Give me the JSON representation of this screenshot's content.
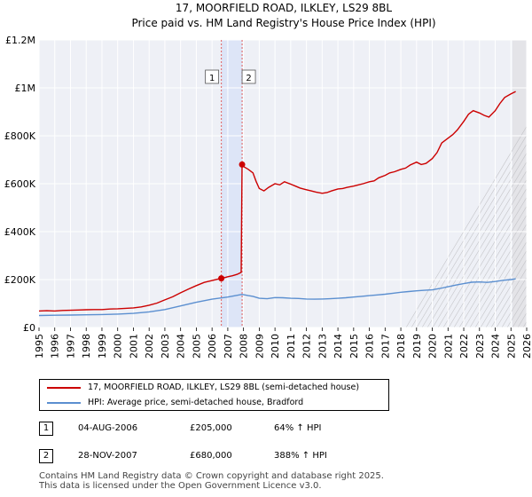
{
  "chart_data": {
    "type": "line",
    "title": "17, MOORFIELD ROAD, ILKLEY, LS29 8BL",
    "subtitle": "Price paid vs. HM Land Registry's House Price Index (HPI)",
    "ylim": [
      0,
      1200000
    ],
    "xlim": [
      1995,
      2026
    ],
    "y_ticks": [
      {
        "value": 0,
        "label": "£0"
      },
      {
        "value": 200000,
        "label": "£200K"
      },
      {
        "value": 400000,
        "label": "£400K"
      },
      {
        "value": 600000,
        "label": "£600K"
      },
      {
        "value": 800000,
        "label": "£800K"
      },
      {
        "value": 1000000,
        "label": "£1M"
      },
      {
        "value": 1200000,
        "label": "£1.2M"
      }
    ],
    "x_ticks": [
      1995,
      1996,
      1997,
      1998,
      1999,
      2000,
      2001,
      2002,
      2003,
      2004,
      2005,
      2006,
      2007,
      2008,
      2009,
      2010,
      2011,
      2012,
      2013,
      2014,
      2015,
      2016,
      2017,
      2018,
      2019,
      2020,
      2021,
      2022,
      2023,
      2024,
      2025,
      2026
    ],
    "grid": true,
    "shaded_band": {
      "from": 2006.59,
      "to": 2007.91
    },
    "sales": [
      {
        "id": "1",
        "x": 2006.59,
        "y": 205000
      },
      {
        "id": "2",
        "x": 2007.91,
        "y": 680000
      }
    ],
    "future_from": 2025.1,
    "series": [
      {
        "name": "17, MOORFIELD ROAD, ILKLEY, LS29 8BL (semi-detached house)",
        "color": "#cc0000",
        "points": [
          [
            1995.0,
            69000
          ],
          [
            1995.5,
            70000
          ],
          [
            1996.0,
            69000
          ],
          [
            1996.5,
            71000
          ],
          [
            1997.0,
            72000
          ],
          [
            1997.5,
            73000
          ],
          [
            1998.0,
            74000
          ],
          [
            1998.5,
            75000
          ],
          [
            1999.0,
            75000
          ],
          [
            1999.5,
            77000
          ],
          [
            2000.0,
            78000
          ],
          [
            2000.5,
            80000
          ],
          [
            2001.0,
            82000
          ],
          [
            2001.5,
            86000
          ],
          [
            2002.0,
            93000
          ],
          [
            2002.5,
            102000
          ],
          [
            2003.0,
            115000
          ],
          [
            2003.5,
            128000
          ],
          [
            2004.0,
            145000
          ],
          [
            2004.5,
            160000
          ],
          [
            2005.0,
            175000
          ],
          [
            2005.5,
            188000
          ],
          [
            2006.0,
            196000
          ],
          [
            2006.59,
            205000
          ],
          [
            2006.8,
            208000
          ],
          [
            2007.0,
            212000
          ],
          [
            2007.3,
            216000
          ],
          [
            2007.6,
            222000
          ],
          [
            2007.85,
            230000
          ],
          [
            2007.91,
            680000
          ],
          [
            2008.0,
            672000
          ],
          [
            2008.3,
            660000
          ],
          [
            2008.6,
            645000
          ],
          [
            2008.8,
            610000
          ],
          [
            2009.0,
            580000
          ],
          [
            2009.3,
            570000
          ],
          [
            2009.6,
            585000
          ],
          [
            2010.0,
            600000
          ],
          [
            2010.3,
            595000
          ],
          [
            2010.6,
            608000
          ],
          [
            2011.0,
            598000
          ],
          [
            2011.3,
            590000
          ],
          [
            2011.6,
            582000
          ],
          [
            2012.0,
            575000
          ],
          [
            2012.3,
            570000
          ],
          [
            2012.6,
            565000
          ],
          [
            2013.0,
            560000
          ],
          [
            2013.3,
            563000
          ],
          [
            2013.6,
            570000
          ],
          [
            2014.0,
            578000
          ],
          [
            2014.3,
            580000
          ],
          [
            2014.6,
            585000
          ],
          [
            2015.0,
            590000
          ],
          [
            2015.3,
            595000
          ],
          [
            2015.6,
            600000
          ],
          [
            2016.0,
            608000
          ],
          [
            2016.3,
            612000
          ],
          [
            2016.6,
            625000
          ],
          [
            2017.0,
            635000
          ],
          [
            2017.3,
            645000
          ],
          [
            2017.6,
            650000
          ],
          [
            2018.0,
            660000
          ],
          [
            2018.3,
            665000
          ],
          [
            2018.6,
            678000
          ],
          [
            2019.0,
            690000
          ],
          [
            2019.3,
            680000
          ],
          [
            2019.6,
            685000
          ],
          [
            2020.0,
            705000
          ],
          [
            2020.3,
            730000
          ],
          [
            2020.6,
            770000
          ],
          [
            2021.0,
            790000
          ],
          [
            2021.3,
            805000
          ],
          [
            2021.6,
            825000
          ],
          [
            2022.0,
            860000
          ],
          [
            2022.3,
            890000
          ],
          [
            2022.6,
            905000
          ],
          [
            2023.0,
            895000
          ],
          [
            2023.3,
            885000
          ],
          [
            2023.6,
            878000
          ],
          [
            2024.0,
            905000
          ],
          [
            2024.3,
            935000
          ],
          [
            2024.6,
            960000
          ],
          [
            2025.0,
            975000
          ],
          [
            2025.3,
            985000
          ]
        ]
      },
      {
        "name": "HPI: Average price, semi-detached house, Bradford",
        "color": "#5b8fd0",
        "points": [
          [
            1995.0,
            50000
          ],
          [
            1996.0,
            51000
          ],
          [
            1997.0,
            52000
          ],
          [
            1998.0,
            53000
          ],
          [
            1999.0,
            54000
          ],
          [
            2000.0,
            56000
          ],
          [
            2001.0,
            59000
          ],
          [
            2002.0,
            65000
          ],
          [
            2003.0,
            75000
          ],
          [
            2004.0,
            90000
          ],
          [
            2005.0,
            105000
          ],
          [
            2006.0,
            118000
          ],
          [
            2007.0,
            127000
          ],
          [
            2007.91,
            138000
          ],
          [
            2008.3,
            133000
          ],
          [
            2008.6,
            130000
          ],
          [
            2009.0,
            122000
          ],
          [
            2009.5,
            120000
          ],
          [
            2010.0,
            125000
          ],
          [
            2010.5,
            124000
          ],
          [
            2011.0,
            122000
          ],
          [
            2011.5,
            121000
          ],
          [
            2012.0,
            119000
          ],
          [
            2012.5,
            118000
          ],
          [
            2013.0,
            119000
          ],
          [
            2013.5,
            120000
          ],
          [
            2014.0,
            122000
          ],
          [
            2014.5,
            124000
          ],
          [
            2015.0,
            127000
          ],
          [
            2015.5,
            130000
          ],
          [
            2016.0,
            133000
          ],
          [
            2016.5,
            136000
          ],
          [
            2017.0,
            139000
          ],
          [
            2017.5,
            143000
          ],
          [
            2018.0,
            147000
          ],
          [
            2018.5,
            150000
          ],
          [
            2019.0,
            153000
          ],
          [
            2019.5,
            155000
          ],
          [
            2020.0,
            157000
          ],
          [
            2020.5,
            163000
          ],
          [
            2021.0,
            170000
          ],
          [
            2021.5,
            177000
          ],
          [
            2022.0,
            183000
          ],
          [
            2022.5,
            189000
          ],
          [
            2023.0,
            190000
          ],
          [
            2023.5,
            188000
          ],
          [
            2024.0,
            192000
          ],
          [
            2024.5,
            197000
          ],
          [
            2025.0,
            200000
          ],
          [
            2025.3,
            203000
          ]
        ]
      }
    ]
  },
  "legend": {
    "property_label": "17, MOORFIELD ROAD, ILKLEY, LS29 8BL (semi-detached house)",
    "hpi_label": "HPI: Average price, semi-detached house, Bradford"
  },
  "transactions": [
    {
      "num": "1",
      "date": "04-AUG-2006",
      "price": "£205,000",
      "hpi": "64% ↑ HPI"
    },
    {
      "num": "2",
      "date": "28-NOV-2007",
      "price": "£680,000",
      "hpi": "388% ↑ HPI"
    }
  ],
  "footer": {
    "line1": "Contains HM Land Registry data © Crown copyright and database right 2025.",
    "line2": "This data is licensed under the Open Government Licence v3.0."
  }
}
